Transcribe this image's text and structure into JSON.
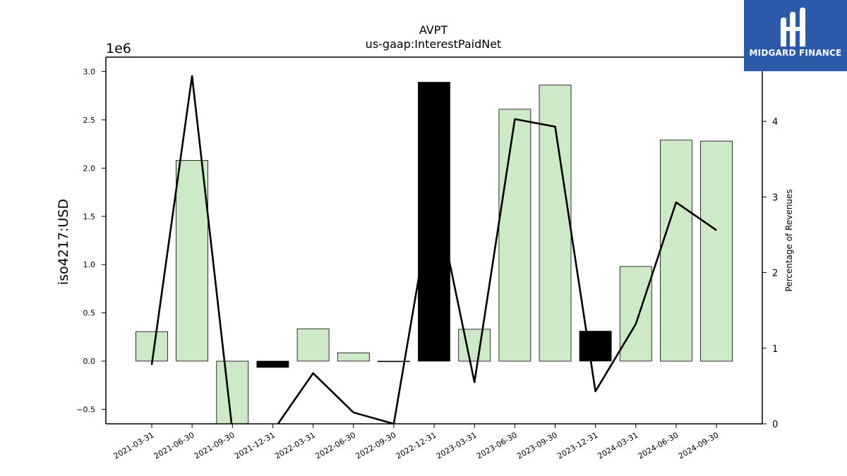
{
  "chart_data": {
    "type": "bar",
    "title": "AVPT",
    "subtitle": "us-gaap:InterestPaidNet",
    "ylabel": "iso4217:USD",
    "y_multiplier_label": "1e6",
    "y2label": "Percentage of Revenues",
    "ylim": [
      -650000,
      3150000
    ],
    "y2lim": [
      0,
      4.85
    ],
    "yticks": [
      "−0.5",
      "0.0",
      "0.5",
      "1.0",
      "1.5",
      "2.0",
      "2.5",
      "3.0"
    ],
    "ytick_values": [
      -500000,
      0,
      500000,
      1000000,
      1500000,
      2000000,
      2500000,
      3000000
    ],
    "y2ticks": [
      "0",
      "1",
      "2",
      "3",
      "4"
    ],
    "y2tick_values": [
      0,
      1,
      2,
      3,
      4
    ],
    "categories": [
      "2021-03-31",
      "2021-06-30",
      "2021-09-30",
      "2021-12-31",
      "2022-03-31",
      "2022-06-30",
      "2022-09-30",
      "2022-12-31",
      "2023-03-31",
      "2023-06-30",
      "2023-09-30",
      "2023-12-31",
      "2024-03-31",
      "2024-06-30",
      "2024-09-30"
    ],
    "series": [
      {
        "type": "bar",
        "values": [
          305000,
          2080000,
          -700000,
          -65000,
          335000,
          85000,
          -5000,
          2890000,
          330000,
          2610000,
          2860000,
          310000,
          980000,
          2290000,
          2280000
        ],
        "highlight": [
          false,
          false,
          false,
          true,
          false,
          false,
          false,
          true,
          false,
          false,
          false,
          true,
          false,
          false,
          false
        ]
      },
      {
        "type": "line",
        "axis": "right",
        "values": [
          0.78,
          4.6,
          -0.1,
          -0.1,
          0.67,
          0.15,
          0.0,
          3.12,
          0.55,
          4.03,
          3.93,
          0.43,
          1.32,
          2.93,
          2.56
        ]
      }
    ],
    "colors": {
      "bar": "#cde9c8",
      "bar_edge": "#000000",
      "highlight": "#000000",
      "line": "#000000"
    },
    "grid": false
  },
  "logo": {
    "text": "MIDGARD FINANCE",
    "color": "#2d5aa8"
  }
}
